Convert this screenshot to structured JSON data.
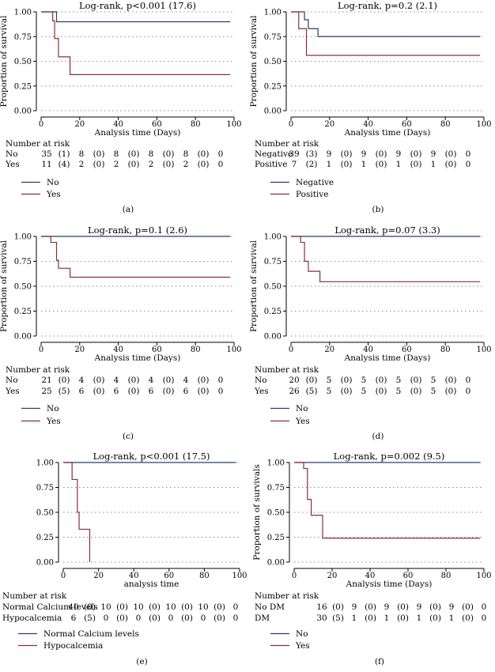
{
  "figure": {
    "colors": {
      "axis": "#000000",
      "grid": "#8c8c8c",
      "series_a": "#2e3f6e",
      "series_b": "#8a2f3d"
    }
  },
  "chart_data": [
    {
      "type": "line",
      "panel_label": "(a)",
      "title": "Log-rank, p<0.001 (17.6)",
      "xlabel": "Analysis time (Days)",
      "ylabel": "Proportion of survival",
      "xlim": [
        0,
        100
      ],
      "ylim": [
        0,
        1
      ],
      "xticks": [
        0,
        20,
        40,
        60,
        80,
        100
      ],
      "yticks": [
        0.0,
        0.25,
        0.5,
        0.75,
        1.0
      ],
      "xtick_labels": [
        "0",
        "20",
        "40",
        "60",
        "80",
        "100"
      ],
      "ytick_labels": [
        "0.00",
        "0.25",
        "0.50",
        "0.75",
        "1.00"
      ],
      "series": [
        {
          "name": "No",
          "steps": [
            [
              0,
              1.0
            ],
            [
              8,
              0.9
            ],
            [
              98,
              0.9
            ]
          ]
        },
        {
          "name": "Yes",
          "steps": [
            [
              0,
              1.0
            ],
            [
              6,
              0.91
            ],
            [
              7,
              0.73
            ],
            [
              9,
              0.545
            ],
            [
              15,
              0.365
            ],
            [
              98,
              0.365
            ]
          ]
        }
      ],
      "risk_table": {
        "heading": "Number at risk",
        "rows": [
          {
            "label": "No",
            "cells": [
              "35",
              "(1)",
              "8",
              "(0)",
              "8",
              "(0)",
              "8",
              "(0)",
              "8",
              "(0)",
              "0"
            ]
          },
          {
            "label": "Yes",
            "cells": [
              "11",
              "(4)",
              "2",
              "(0)",
              "2",
              "(0)",
              "2",
              "(0)",
              "2",
              "(0)",
              "0"
            ]
          }
        ]
      },
      "legend": [
        "No",
        "Yes"
      ]
    },
    {
      "type": "line",
      "panel_label": "(b)",
      "title": "Log-rank, p=0.2 (2.1)",
      "xlabel": "Analysis time (Days)",
      "ylabel": "Proportion of survival",
      "xlim": [
        0,
        100
      ],
      "ylim": [
        0,
        1
      ],
      "xticks": [
        0,
        20,
        40,
        60,
        80,
        100
      ],
      "yticks": [
        0.0,
        0.25,
        0.5,
        0.75,
        1.0
      ],
      "xtick_labels": [
        "0",
        "20",
        "40",
        "60",
        "80",
        "100"
      ],
      "ytick_labels": [
        "0.00",
        "0.25",
        "0.50",
        "0.75",
        "1.00"
      ],
      "series": [
        {
          "name": "Negative",
          "steps": [
            [
              0,
              1.0
            ],
            [
              7,
              0.92
            ],
            [
              9,
              0.83
            ],
            [
              14,
              0.75
            ],
            [
              98,
              0.75
            ]
          ]
        },
        {
          "name": "Positive",
          "steps": [
            [
              0,
              1.0
            ],
            [
              4,
              0.83
            ],
            [
              8,
              0.56
            ],
            [
              98,
              0.56
            ]
          ]
        }
      ],
      "risk_table": {
        "heading": "Number at risk",
        "rows": [
          {
            "label": "Negative",
            "cells": [
              "39",
              "(3)",
              "9",
              "(0)",
              "9",
              "(0)",
              "9",
              "(0)",
              "9",
              "(0)",
              "0"
            ]
          },
          {
            "label": "Positive",
            "cells": [
              "7",
              "(2)",
              "1",
              "(0)",
              "1",
              "(0)",
              "1",
              "(0)",
              "1",
              "(0)",
              "0"
            ]
          }
        ]
      },
      "legend": [
        "Negative",
        "Positive"
      ]
    },
    {
      "type": "line",
      "panel_label": "(c)",
      "title": "Log-rank, p=0.1 (2.6)",
      "xlabel": "Analysis time (Days)",
      "ylabel": "Proportion of survival",
      "xlim": [
        0,
        100
      ],
      "ylim": [
        0,
        1
      ],
      "xticks": [
        0,
        20,
        40,
        60,
        80,
        100
      ],
      "yticks": [
        0.0,
        0.25,
        0.5,
        0.75,
        1.0
      ],
      "xtick_labels": [
        "0",
        "20",
        "40",
        "60",
        "80",
        "100"
      ],
      "ytick_labels": [
        "0.00",
        "0.25",
        "0.50",
        "0.75",
        "1.00"
      ],
      "series": [
        {
          "name": "No",
          "steps": [
            [
              0,
              1.0
            ],
            [
              98,
              1.0
            ]
          ]
        },
        {
          "name": "Yes",
          "steps": [
            [
              0,
              1.0
            ],
            [
              5,
              0.94
            ],
            [
              8,
              0.76
            ],
            [
              9,
              0.68
            ],
            [
              15,
              0.59
            ],
            [
              98,
              0.59
            ]
          ]
        }
      ],
      "risk_table": {
        "heading": "Number at risk",
        "rows": [
          {
            "label": "No",
            "cells": [
              "21",
              "(0)",
              "4",
              "(0)",
              "4",
              "(0)",
              "4",
              "(0)",
              "4",
              "(0)",
              "0"
            ]
          },
          {
            "label": "Yes",
            "cells": [
              "25",
              "(5)",
              "6",
              "(0)",
              "6",
              "(0)",
              "6",
              "(0)",
              "6",
              "(0)",
              "0"
            ]
          }
        ]
      },
      "legend": [
        "No",
        "Yes"
      ]
    },
    {
      "type": "line",
      "panel_label": "(d)",
      "title": "Log-rank, p=0.07 (3.3)",
      "xlabel": "Analysis time (Days)",
      "ylabel": "Proportion of survival",
      "xlim": [
        0,
        100
      ],
      "ylim": [
        0,
        1
      ],
      "xticks": [
        0,
        20,
        40,
        60,
        80,
        100
      ],
      "yticks": [
        0.0,
        0.25,
        0.5,
        0.75,
        1.0
      ],
      "xtick_labels": [
        "0",
        "20",
        "40",
        "60",
        "80",
        "100"
      ],
      "ytick_labels": [
        "0.00",
        "0.25",
        "0.50",
        "0.75",
        "1.00"
      ],
      "series": [
        {
          "name": "No",
          "steps": [
            [
              0,
              1.0
            ],
            [
              98,
              1.0
            ]
          ]
        },
        {
          "name": "Yes",
          "steps": [
            [
              0,
              1.0
            ],
            [
              5,
              0.94
            ],
            [
              7,
              0.75
            ],
            [
              9,
              0.65
            ],
            [
              15,
              0.545
            ],
            [
              98,
              0.545
            ]
          ]
        }
      ],
      "risk_table": {
        "heading": "Number at risk",
        "rows": [
          {
            "label": "No",
            "cells": [
              "20",
              "(0)",
              "5",
              "(0)",
              "5",
              "(0)",
              "5",
              "(0)",
              "5",
              "(0)",
              "0"
            ]
          },
          {
            "label": "Yes",
            "cells": [
              "26",
              "(5)",
              "5",
              "(0)",
              "5",
              "(0)",
              "5",
              "(0)",
              "5",
              "(0)",
              "0"
            ]
          }
        ]
      },
      "legend": [
        "No",
        "Yes"
      ]
    },
    {
      "type": "line",
      "panel_label": "(e)",
      "title": "Log-rank, p<0.001 (17.5)",
      "xlabel": "analysis time",
      "ylabel": "",
      "xlim": [
        0,
        100
      ],
      "ylim": [
        0,
        1
      ],
      "xticks": [
        0,
        20,
        40,
        60,
        80,
        100
      ],
      "yticks": [
        0.0,
        0.25,
        0.5,
        0.75,
        1.0
      ],
      "xtick_labels": [
        "0",
        "20",
        "40",
        "60",
        "80",
        "100"
      ],
      "ytick_labels": [
        "0.00",
        "0.25",
        "0.50",
        "0.75",
        "1.00"
      ],
      "series": [
        {
          "name": "Normal Calcium levels",
          "steps": [
            [
              0,
              1.0
            ],
            [
              98,
              1.0
            ]
          ]
        },
        {
          "name": "Hypocalcemia",
          "steps": [
            [
              0,
              1.0
            ],
            [
              5,
              0.83
            ],
            [
              8,
              0.5
            ],
            [
              9,
              0.33
            ],
            [
              15,
              0.0
            ]
          ]
        }
      ],
      "risk_table": {
        "heading": "Number at risk",
        "rows": [
          {
            "label": "Normal Calcium levels",
            "cells": [
              "40",
              "(0)",
              "10",
              "(0)",
              "10",
              "(0)",
              "10",
              "(0)",
              "10",
              "(0)",
              "0"
            ]
          },
          {
            "label": "Hypocalcemia",
            "cells": [
              "6",
              "(5)",
              "0",
              "(0)",
              "0",
              "(0)",
              "0",
              "(0)",
              "0",
              "(0)",
              "0"
            ]
          }
        ]
      },
      "legend": [
        "Normal Calcium levels",
        "Hypocalcemia"
      ]
    },
    {
      "type": "line",
      "panel_label": "(f)",
      "title": "Log-rank, p=0.002 (9.5)",
      "xlabel": "Analysis time (Days)",
      "ylabel": "Proportion of survivals",
      "xlim": [
        0,
        100
      ],
      "ylim": [
        0,
        1
      ],
      "xticks": [
        0,
        20,
        40,
        60,
        80,
        100
      ],
      "yticks": [
        0.0,
        0.25,
        0.5,
        0.75,
        1.0
      ],
      "xtick_labels": [
        "0",
        "20",
        "40",
        "60",
        "80",
        "100"
      ],
      "ytick_labels": [
        "0.00",
        "0.25",
        "0.50",
        "0.75",
        "1.00"
      ],
      "series": [
        {
          "name": "No",
          "steps": [
            [
              0,
              1.0
            ],
            [
              98,
              1.0
            ]
          ]
        },
        {
          "name": "Yes",
          "steps": [
            [
              0,
              1.0
            ],
            [
              5,
              0.94
            ],
            [
              7,
              0.63
            ],
            [
              9,
              0.47
            ],
            [
              15,
              0.24
            ],
            [
              98,
              0.24
            ]
          ]
        }
      ],
      "risk_table": {
        "heading": "Number at risk",
        "rows": [
          {
            "label": "No DM",
            "cells": [
              "16",
              "(0)",
              "9",
              "(0)",
              "9",
              "(0)",
              "9",
              "(0)",
              "9",
              "(0)",
              "0"
            ]
          },
          {
            "label": "DM",
            "cells": [
              "30",
              "(5)",
              "1",
              "(0)",
              "1",
              "(0)",
              "1",
              "(0)",
              "1",
              "(0)",
              "0"
            ]
          }
        ]
      },
      "legend": [
        "No",
        "Yes"
      ]
    }
  ]
}
